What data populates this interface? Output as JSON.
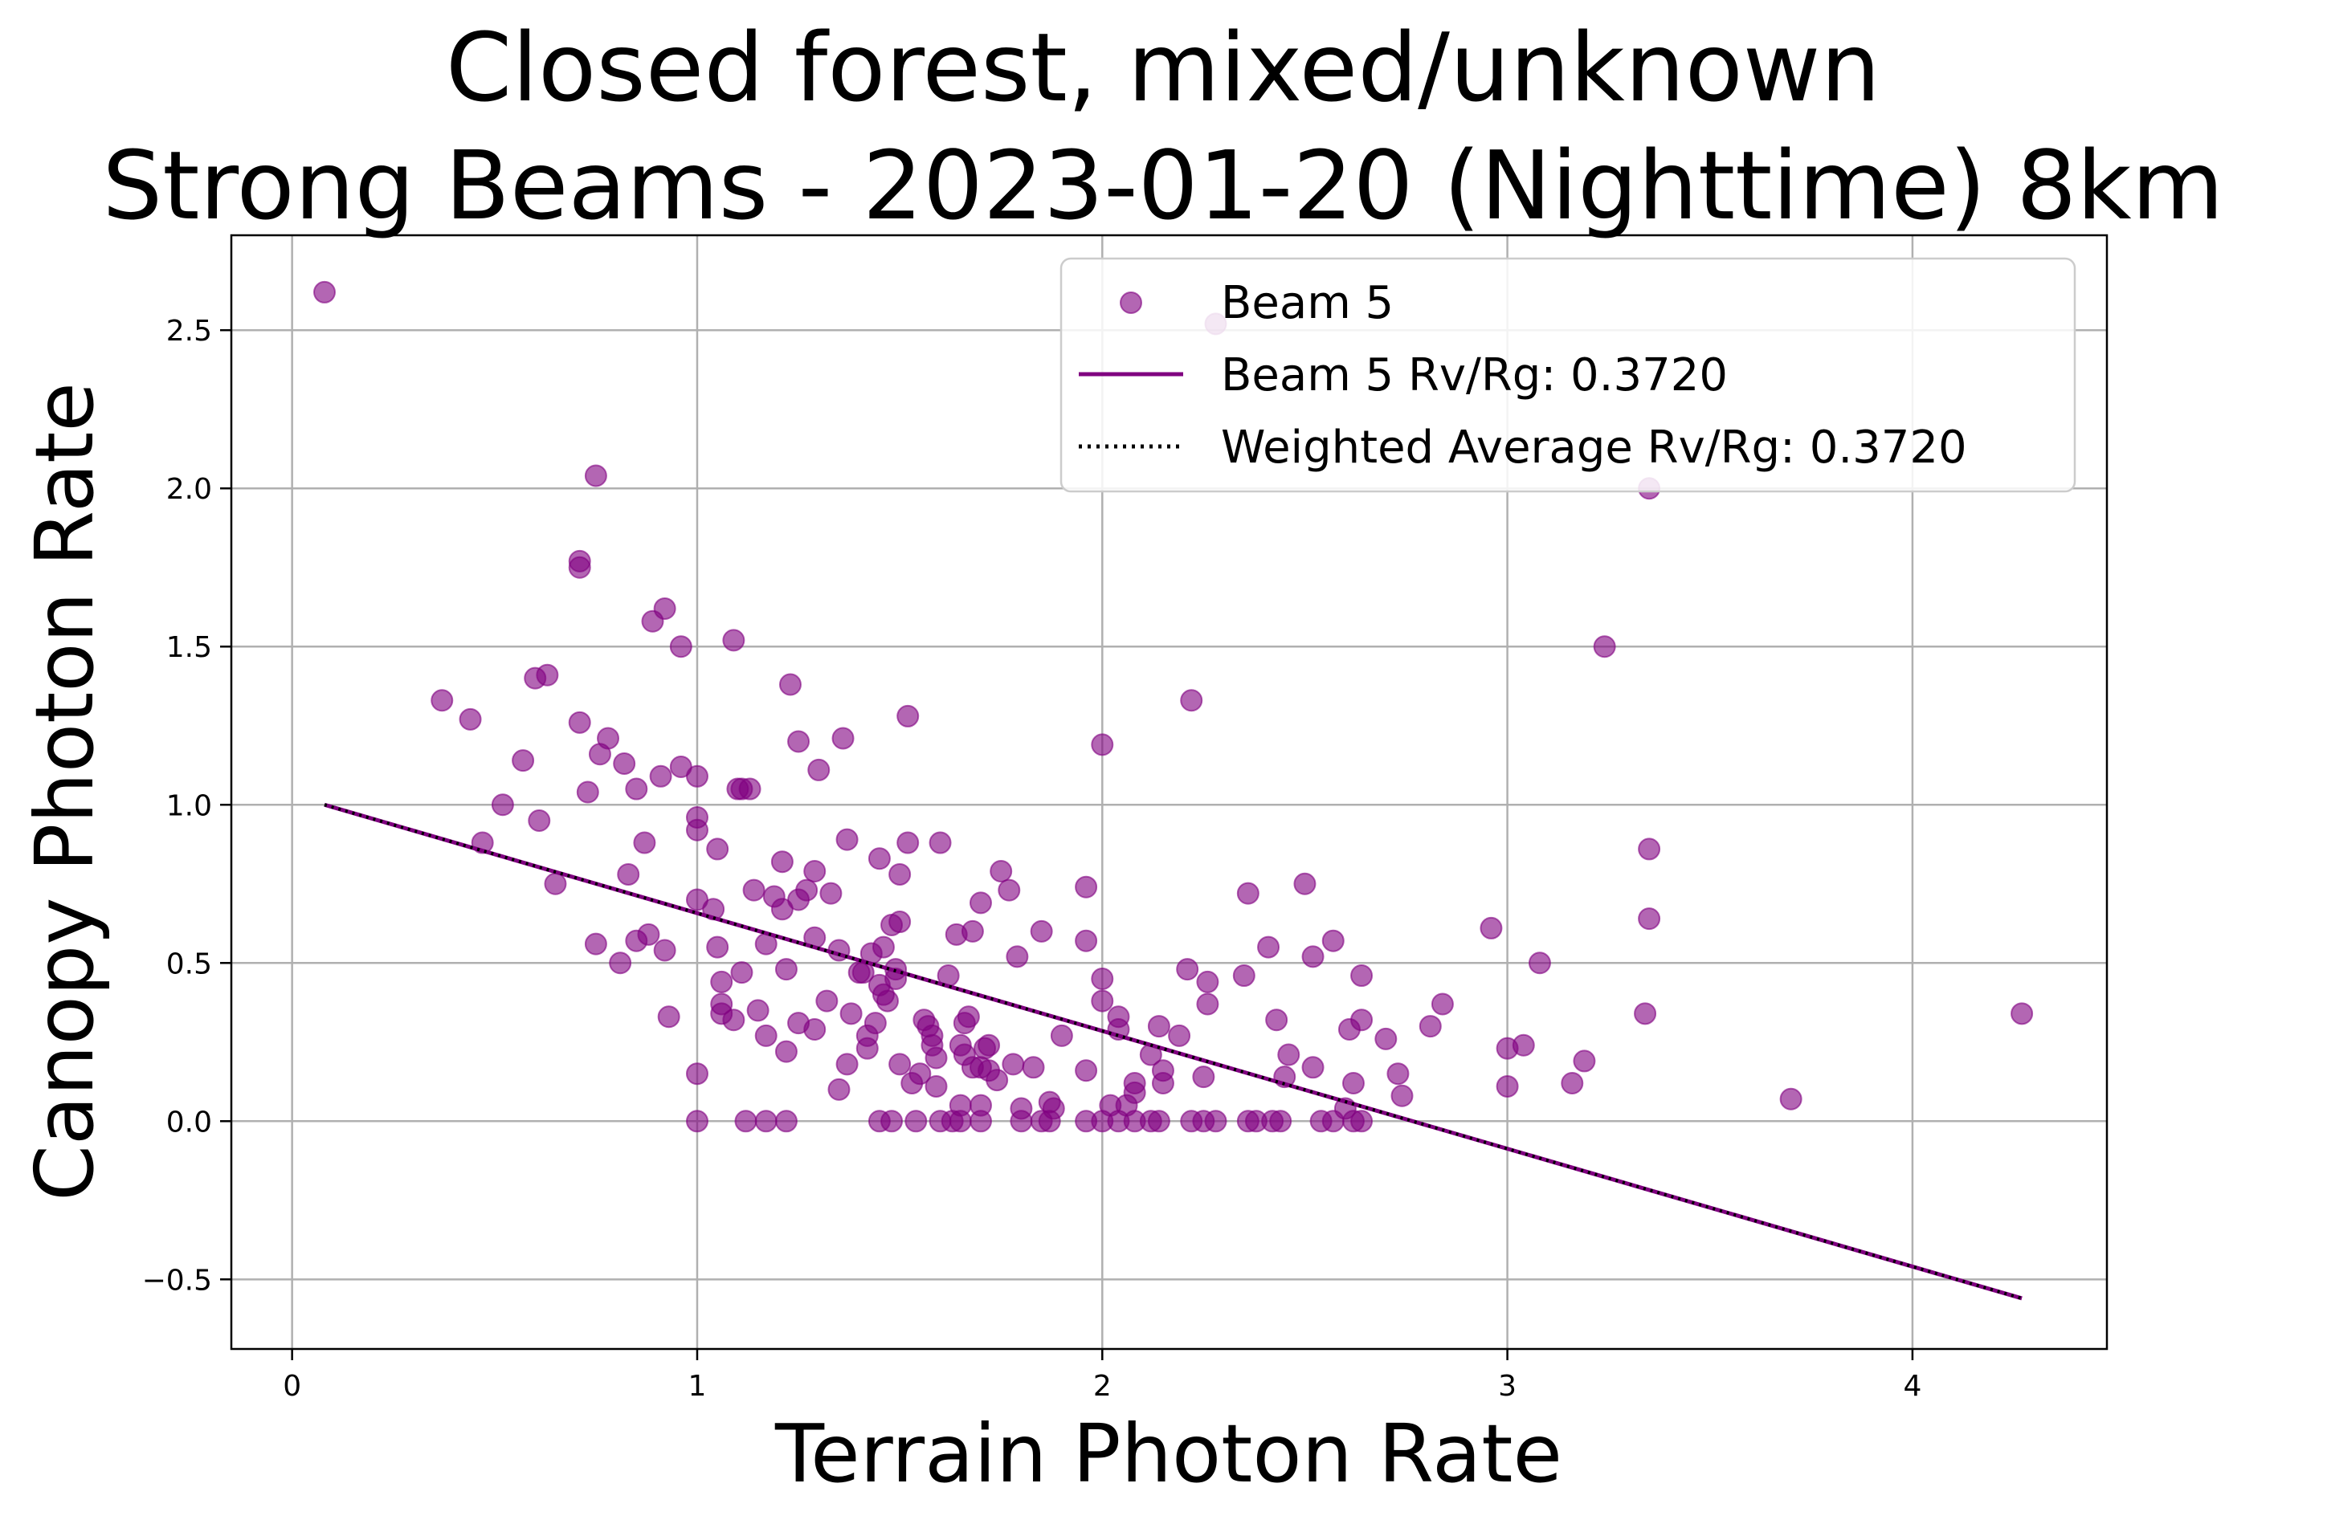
{
  "chart_data": {
    "type": "scatter",
    "title_line1": "Closed forest, mixed/unknown",
    "title_line2": "Strong Beams - 2023-01-20 (Nighttime) 8km",
    "xlabel": "Terrain Photon Rate",
    "ylabel": "Canopy Photon Rate",
    "xlim": [
      -0.15,
      4.48
    ],
    "ylim": [
      -0.72,
      2.8
    ],
    "x_ticks": [
      0,
      1,
      2,
      3,
      4
    ],
    "x_tick_labels": [
      "0",
      "1",
      "2",
      "3",
      "4"
    ],
    "y_ticks": [
      -0.5,
      0.0,
      0.5,
      1.0,
      1.5,
      2.0,
      2.5
    ],
    "y_tick_labels": [
      "−0.5",
      "0.0",
      "0.5",
      "1.0",
      "1.5",
      "2.0",
      "2.5"
    ],
    "grid": true,
    "legend_placement": "top-right",
    "colors": {
      "points": "#800080",
      "fit_line": "#800080",
      "avg_line": "#000000",
      "grid": "#b0b0b0"
    },
    "legend": {
      "scatter_label": "Beam 5",
      "fit_label": "Beam 5 Rv/Rg: 0.3720",
      "avg_label": "Weighted Average Rv/Rg: 0.3720"
    },
    "fit_line": {
      "x": [
        0.08,
        4.27
      ],
      "y": [
        1.0,
        -0.56
      ]
    },
    "avg_line": {
      "x": [
        0.08,
        4.27
      ],
      "y": [
        1.0,
        -0.56
      ]
    },
    "series": [
      {
        "name": "Beam 5",
        "points": [
          [
            0.08,
            2.62
          ],
          [
            0.75,
            2.04
          ],
          [
            0.71,
            1.77
          ],
          [
            0.71,
            1.75
          ],
          [
            0.37,
            1.33
          ],
          [
            0.44,
            1.27
          ],
          [
            0.6,
            1.4
          ],
          [
            0.63,
            1.41
          ],
          [
            0.71,
            1.26
          ],
          [
            0.78,
            1.21
          ],
          [
            0.76,
            1.16
          ],
          [
            0.82,
            1.13
          ],
          [
            0.57,
            1.14
          ],
          [
            0.52,
            1.0
          ],
          [
            0.73,
            1.04
          ],
          [
            0.61,
            0.95
          ],
          [
            0.47,
            0.88
          ],
          [
            0.85,
            1.05
          ],
          [
            0.91,
            1.09
          ],
          [
            0.96,
            1.12
          ],
          [
            1.0,
            1.09
          ],
          [
            0.89,
            1.58
          ],
          [
            0.92,
            1.62
          ],
          [
            0.96,
            1.5
          ],
          [
            0.87,
            0.88
          ],
          [
            0.83,
            0.78
          ],
          [
            1.0,
            0.96
          ],
          [
            1.0,
            0.92
          ],
          [
            1.05,
            0.86
          ],
          [
            0.65,
            0.75
          ],
          [
            0.75,
            0.56
          ],
          [
            0.81,
            0.5
          ],
          [
            0.85,
            0.57
          ],
          [
            0.88,
            0.59
          ],
          [
            0.92,
            0.54
          ],
          [
            0.93,
            0.33
          ],
          [
            1.0,
            0.7
          ],
          [
            1.04,
            0.67
          ],
          [
            1.05,
            0.55
          ],
          [
            1.06,
            0.44
          ],
          [
            1.06,
            0.37
          ],
          [
            1.06,
            0.34
          ],
          [
            1.09,
            0.32
          ],
          [
            1.11,
            0.47
          ],
          [
            1.09,
            1.52
          ],
          [
            1.1,
            1.05
          ],
          [
            1.11,
            1.05
          ],
          [
            1.13,
            1.05
          ],
          [
            1.14,
            0.73
          ],
          [
            1.15,
            0.35
          ],
          [
            1.17,
            0.27
          ],
          [
            1.17,
            0.56
          ],
          [
            1.19,
            0.71
          ],
          [
            1.21,
            0.67
          ],
          [
            1.21,
            0.82
          ],
          [
            1.22,
            0.48
          ],
          [
            1.22,
            0.22
          ],
          [
            1.23,
            1.38
          ],
          [
            1.25,
            1.2
          ],
          [
            1.25,
            0.7
          ],
          [
            1.25,
            0.31
          ],
          [
            1.27,
            0.73
          ],
          [
            1.29,
            0.79
          ],
          [
            1.29,
            0.58
          ],
          [
            1.29,
            0.29
          ],
          [
            1.3,
            1.11
          ],
          [
            1.32,
            0.38
          ],
          [
            1.33,
            0.72
          ],
          [
            1.35,
            0.54
          ],
          [
            1.36,
            1.21
          ],
          [
            1.37,
            0.89
          ],
          [
            1.37,
            0.18
          ],
          [
            1.38,
            0.34
          ],
          [
            1.35,
            0.1
          ],
          [
            1.4,
            0.47
          ],
          [
            1.41,
            0.47
          ],
          [
            1.42,
            0.23
          ],
          [
            1.42,
            0.27
          ],
          [
            1.43,
            0.53
          ],
          [
            1.44,
            0.31
          ],
          [
            1.45,
            0.83
          ],
          [
            1.45,
            0.43
          ],
          [
            1.46,
            0.4
          ],
          [
            1.46,
            0.55
          ],
          [
            1.47,
            0.38
          ],
          [
            1.48,
            0.62
          ],
          [
            1.49,
            0.45
          ],
          [
            1.49,
            0.48
          ],
          [
            1.5,
            0.78
          ],
          [
            1.5,
            0.63
          ],
          [
            1.52,
            0.88
          ],
          [
            1.52,
            1.28
          ],
          [
            1.5,
            0.18
          ],
          [
            1.53,
            0.12
          ],
          [
            1.55,
            0.15
          ],
          [
            1.56,
            0.32
          ],
          [
            1.57,
            0.3
          ],
          [
            1.58,
            0.24
          ],
          [
            1.58,
            0.27
          ],
          [
            1.59,
            0.2
          ],
          [
            1.59,
            0.11
          ],
          [
            1.6,
            0.88
          ],
          [
            1.62,
            0.46
          ],
          [
            1.64,
            0.59
          ],
          [
            1.65,
            0.24
          ],
          [
            1.66,
            0.21
          ],
          [
            1.66,
            0.31
          ],
          [
            1.67,
            0.33
          ],
          [
            1.68,
            0.17
          ],
          [
            1.68,
            0.6
          ],
          [
            1.7,
            0.69
          ],
          [
            1.7,
            0.17
          ],
          [
            1.71,
            0.23
          ],
          [
            1.72,
            0.24
          ],
          [
            1.72,
            0.16
          ],
          [
            1.74,
            0.13
          ],
          [
            1.75,
            0.79
          ],
          [
            1.77,
            0.73
          ],
          [
            1.78,
            0.18
          ],
          [
            1.79,
            0.52
          ],
          [
            1.8,
            0.04
          ],
          [
            1.83,
            0.17
          ],
          [
            1.85,
            0.6
          ],
          [
            1.87,
            0.06
          ],
          [
            1.88,
            0.04
          ],
          [
            1.9,
            0.27
          ],
          [
            1.96,
            0.16
          ],
          [
            1.96,
            0.74
          ],
          [
            1.96,
            0.57
          ],
          [
            2.0,
            1.19
          ],
          [
            2.0,
            0.45
          ],
          [
            2.0,
            0.38
          ],
          [
            2.04,
            0.33
          ],
          [
            2.04,
            0.29
          ],
          [
            2.08,
            0.09
          ],
          [
            2.08,
            0.12
          ],
          [
            2.12,
            0.21
          ],
          [
            2.14,
            0.3
          ],
          [
            2.15,
            0.16
          ],
          [
            2.15,
            0.12
          ],
          [
            2.19,
            0.27
          ],
          [
            2.21,
            0.48
          ],
          [
            2.22,
            1.33
          ],
          [
            2.25,
            0.14
          ],
          [
            2.26,
            0.44
          ],
          [
            2.26,
            0.37
          ],
          [
            2.35,
            0.46
          ],
          [
            2.36,
            0.72
          ],
          [
            2.41,
            0.55
          ],
          [
            2.43,
            0.32
          ],
          [
            2.45,
            0.14
          ],
          [
            2.46,
            0.21
          ],
          [
            2.5,
            0.75
          ],
          [
            2.52,
            0.52
          ],
          [
            2.52,
            0.17
          ],
          [
            2.57,
            0.57
          ],
          [
            2.61,
            0.29
          ],
          [
            2.62,
            0.12
          ],
          [
            2.64,
            0.32
          ],
          [
            2.64,
            0.46
          ],
          [
            2.7,
            0.26
          ],
          [
            2.73,
            0.15
          ],
          [
            2.74,
            0.08
          ],
          [
            2.81,
            0.3
          ],
          [
            2.84,
            0.37
          ],
          [
            2.96,
            0.61
          ],
          [
            3.0,
            0.23
          ],
          [
            3.0,
            0.11
          ],
          [
            3.04,
            0.24
          ],
          [
            3.08,
            0.5
          ],
          [
            3.16,
            0.12
          ],
          [
            3.19,
            0.19
          ],
          [
            3.24,
            1.5
          ],
          [
            3.34,
            0.34
          ],
          [
            3.35,
            0.86
          ],
          [
            3.35,
            0.64
          ],
          [
            3.7,
            0.07
          ],
          [
            4.27,
            0.34
          ],
          [
            2.28,
            2.52
          ],
          [
            3.35,
            2.0
          ],
          [
            1.0,
            0.15
          ],
          [
            1.0,
            0.0
          ],
          [
            1.12,
            0.0
          ],
          [
            1.17,
            0.0
          ],
          [
            1.22,
            0.0
          ],
          [
            1.45,
            0.0
          ],
          [
            1.48,
            0.0
          ],
          [
            1.54,
            0.0
          ],
          [
            1.6,
            0.0
          ],
          [
            1.63,
            0.0
          ],
          [
            1.65,
            0.05
          ],
          [
            1.65,
            0.0
          ],
          [
            1.7,
            0.05
          ],
          [
            1.7,
            0.0
          ],
          [
            1.8,
            0.0
          ],
          [
            1.85,
            0.0
          ],
          [
            1.87,
            0.0
          ],
          [
            1.96,
            0.0
          ],
          [
            2.0,
            0.0
          ],
          [
            2.02,
            0.05
          ],
          [
            2.04,
            0.0
          ],
          [
            2.06,
            0.05
          ],
          [
            2.08,
            0.0
          ],
          [
            2.12,
            0.0
          ],
          [
            2.14,
            0.0
          ],
          [
            2.22,
            0.0
          ],
          [
            2.25,
            0.0
          ],
          [
            2.28,
            0.0
          ],
          [
            2.36,
            0.0
          ],
          [
            2.38,
            0.0
          ],
          [
            2.42,
            0.0
          ],
          [
            2.44,
            0.0
          ],
          [
            2.54,
            0.0
          ],
          [
            2.57,
            0.0
          ],
          [
            2.6,
            0.04
          ],
          [
            2.62,
            0.0
          ],
          [
            2.64,
            0.0
          ]
        ]
      }
    ]
  }
}
